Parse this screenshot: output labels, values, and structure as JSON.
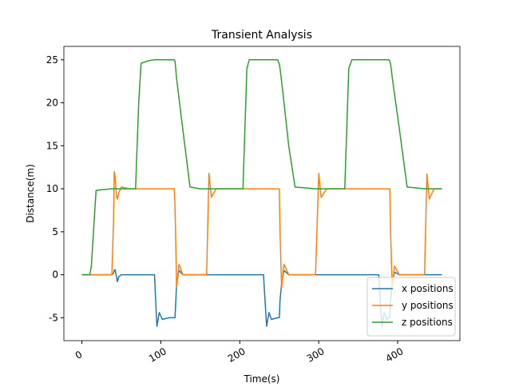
{
  "chart_data": {
    "type": "line",
    "title": "Transient Analysis",
    "x_label": "Time(s)",
    "y_label": "Distance(m)",
    "x": [
      0,
      10,
      12,
      18,
      25,
      38,
      40,
      41,
      42,
      44,
      45,
      47,
      50,
      60,
      68,
      72,
      75,
      85,
      92,
      95,
      98,
      102,
      110,
      117,
      118,
      120,
      123,
      128,
      137,
      150,
      158,
      161,
      164,
      170,
      200,
      204,
      209,
      212,
      230,
      234,
      237,
      240,
      248,
      250,
      251,
      253,
      256,
      262,
      270,
      296,
      300,
      303,
      310,
      333,
      338,
      342,
      376,
      380,
      383,
      386,
      389,
      390,
      391,
      393,
      396,
      402,
      412,
      434,
      437,
      440,
      446,
      456
    ],
    "series": [
      {
        "name": "x positions",
        "color": "#1f77b4",
        "values": [
          0,
          0,
          0,
          0,
          0,
          0,
          0.2,
          0.5,
          0.6,
          -0.3,
          -0.8,
          -0.2,
          0,
          0,
          0,
          0,
          0,
          0,
          0,
          -6,
          -4.4,
          -5.2,
          -5,
          -5,
          -5,
          -1,
          0.5,
          0,
          0,
          0,
          0,
          0,
          0,
          0,
          0,
          0,
          0,
          0,
          0,
          -6,
          -4.4,
          -5.2,
          -5,
          -5,
          -3,
          -1,
          0.5,
          0,
          0,
          0,
          0,
          0,
          0,
          0,
          0,
          0,
          0,
          -6,
          -4.4,
          -5.2,
          -5,
          -5,
          -3,
          -1,
          0.3,
          0,
          0,
          0,
          0,
          0,
          0,
          0
        ]
      },
      {
        "name": "y positions",
        "color": "#ff7f0e",
        "values": [
          0,
          0,
          0,
          0,
          0,
          0,
          6,
          12,
          11.5,
          9,
          8.8,
          9.6,
          10.2,
          10,
          10,
          10,
          10,
          10,
          10,
          10,
          10,
          10,
          10,
          10,
          8,
          -1.5,
          1.2,
          0,
          0,
          0,
          0,
          11.8,
          9,
          10,
          10,
          10,
          10,
          10,
          10,
          10,
          10,
          10,
          10,
          10,
          5,
          -1.5,
          1.2,
          0,
          0,
          0,
          11.8,
          9,
          10,
          10,
          10,
          10,
          10,
          10,
          10,
          10,
          10,
          10,
          5,
          -1.5,
          1,
          0,
          0,
          0,
          11.7,
          8.8,
          10,
          10
        ]
      },
      {
        "name": "z positions",
        "color": "#2ca02c",
        "values": [
          0,
          0,
          1,
          9.8,
          9.9,
          10,
          10,
          10,
          10,
          10,
          10,
          10,
          10,
          10,
          10,
          20,
          24.6,
          24.9,
          25,
          25,
          25,
          25,
          25,
          25,
          24.8,
          22.8,
          20.5,
          16.8,
          10.2,
          10,
          10,
          10,
          10,
          10,
          10,
          10,
          24,
          25,
          25,
          25,
          25,
          25,
          25,
          24.5,
          24,
          22.5,
          20,
          15,
          10.2,
          10,
          10,
          10,
          10,
          10,
          24,
          25,
          25,
          25,
          25,
          25,
          25,
          24.8,
          24.5,
          23,
          21,
          17,
          10.2,
          10,
          10,
          10,
          10,
          10
        ]
      }
    ],
    "xlim": [
      -22.8,
      478.8
    ],
    "ylim": [
      -7.66,
      26.56
    ],
    "xticks": [
      0,
      100,
      200,
      300,
      400
    ],
    "yticks": [
      -5,
      0,
      5,
      10,
      15,
      20,
      25
    ],
    "legend": "lower right"
  }
}
